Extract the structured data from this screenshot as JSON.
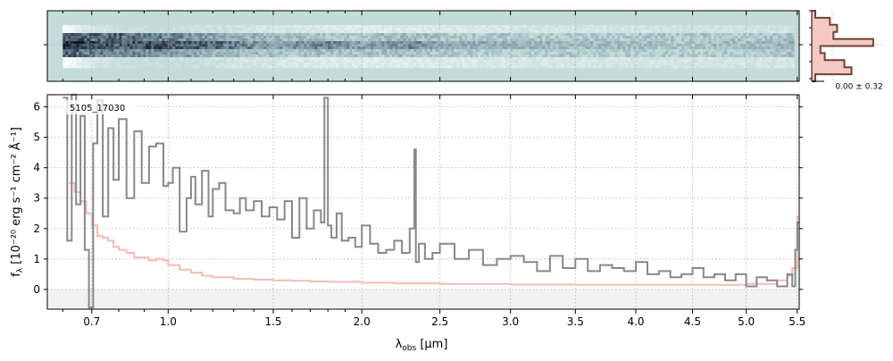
{
  "chart_data": [
    {
      "type": "heatmap",
      "panel": "2d-spectrum",
      "colors": {
        "background": "#c4dcd9",
        "dark": "#101828",
        "mid": "#7f9aa8",
        "light": "#ffffff"
      },
      "profile_columns": [
        "top-bright",
        "upper",
        "trace",
        "lower",
        "bottom-bright"
      ],
      "intensity_profile_x": [
        0.6,
        0.65,
        0.7,
        0.8,
        0.95,
        1.2,
        1.5,
        1.8,
        2.0,
        2.3,
        2.5,
        3.0,
        3.5,
        4.0,
        4.5,
        5.0,
        5.4,
        5.5
      ],
      "intensity_profile": [
        [
          0.95,
          0.5,
          0.3,
          0.1,
          0.0,
          0.15,
          0.3,
          0.4,
          0.45,
          0.4,
          0.4,
          0.3,
          0.25,
          0.25,
          0.2,
          0.2,
          0.2,
          0.3
        ],
        [
          0.8,
          0.8,
          0.7,
          0.7,
          0.6,
          0.4,
          0.25,
          0.2,
          0.2,
          0.25,
          0.15,
          0.15,
          0.15,
          0.15,
          0.15,
          0.15,
          0.2,
          0.3
        ],
        [
          0.95,
          0.95,
          0.8,
          0.75,
          0.8,
          0.7,
          0.4,
          0.6,
          0.4,
          0.55,
          0.4,
          0.3,
          0.25,
          0.2,
          0.2,
          0.25,
          0.3,
          0.5
        ],
        [
          0.7,
          0.7,
          0.6,
          0.6,
          0.5,
          0.3,
          0.2,
          0.2,
          0.2,
          0.2,
          0.15,
          0.1,
          0.1,
          0.1,
          0.1,
          0.1,
          0.2,
          0.3
        ],
        [
          0.95,
          0.6,
          0.3,
          0.1,
          0.0,
          0.15,
          0.3,
          0.4,
          0.45,
          0.4,
          0.4,
          0.3,
          0.3,
          0.25,
          0.25,
          0.25,
          0.3,
          0.4
        ]
      ]
    },
    {
      "type": "line",
      "panel": "profile-histogram",
      "annotation": "0.00 ± 0.32",
      "colors": {
        "line": "#6b4438",
        "fill": "#f6c8c2"
      },
      "series": [
        {
          "y": [
            -0.9,
            -0.7,
            -0.5,
            -0.3,
            -0.1,
            0.1,
            0.3,
            0.5,
            0.7,
            0.9
          ],
          "values": [
            0.05,
            0.55,
            0.45,
            0.18,
            0.12,
            0.85,
            0.3,
            0.35,
            0.25,
            0.05
          ]
        }
      ]
    },
    {
      "type": "line",
      "panel": "1d-spectrum",
      "label": "5105_17030",
      "xlabel": "λ",
      "xlabel_sub": "obs",
      "xlabel_unit": " [μm]",
      "ylabel": "f",
      "ylabel_sub": "λ",
      "ylabel_unit": " [10⁻²⁰ erg s⁻¹ cm⁻² Å⁻¹]",
      "xlim": [
        0.55,
        5.52
      ],
      "ylim": [
        -0.65,
        6.4
      ],
      "x_scale": "sqrt",
      "x_ticks": [
        0.7,
        1.0,
        1.5,
        2.0,
        2.5,
        3.0,
        3.5,
        4.0,
        4.5,
        5.0,
        5.5
      ],
      "x_ticks_minor": [
        0.6,
        0.8,
        0.9,
        1.1,
        1.2,
        1.3,
        1.4,
        1.6,
        1.7,
        1.8,
        1.9
      ],
      "y_ticks": [
        0,
        1,
        2,
        3,
        4,
        5,
        6
      ],
      "grid": true,
      "colors": {
        "data": "#888888",
        "model": "#f7b9b5",
        "zero_band": "#f2f2f2"
      },
      "series": [
        {
          "role": "data",
          "x": [
            0.6,
            0.615,
            0.63,
            0.645,
            0.66,
            0.675,
            0.69,
            0.705,
            0.72,
            0.74,
            0.76,
            0.78,
            0.8,
            0.83,
            0.86,
            0.89,
            0.92,
            0.95,
            0.98,
            1.0,
            1.02,
            1.05,
            1.08,
            1.1,
            1.12,
            1.15,
            1.18,
            1.2,
            1.23,
            1.26,
            1.3,
            1.33,
            1.36,
            1.4,
            1.44,
            1.48,
            1.52,
            1.56,
            1.6,
            1.64,
            1.68,
            1.72,
            1.76,
            1.78,
            1.8,
            1.82,
            1.85,
            1.88,
            1.92,
            1.96,
            2.0,
            2.05,
            2.1,
            2.15,
            2.2,
            2.25,
            2.3,
            2.33,
            2.34,
            2.36,
            2.4,
            2.45,
            2.5,
            2.6,
            2.7,
            2.8,
            2.9,
            3.0,
            3.1,
            3.2,
            3.3,
            3.4,
            3.5,
            3.6,
            3.7,
            3.8,
            3.9,
            4.0,
            4.1,
            4.2,
            4.3,
            4.4,
            4.5,
            4.6,
            4.7,
            4.8,
            4.9,
            5.0,
            5.1,
            5.2,
            5.3,
            5.4,
            5.45,
            5.48,
            5.5
          ],
          "values": [
            6.3,
            1.6,
            6.4,
            2.8,
            5.7,
            1.3,
            -0.6,
            4.8,
            6.2,
            2.4,
            5.3,
            3.6,
            5.6,
            3.0,
            5.2,
            3.5,
            4.7,
            4.8,
            3.4,
            3.5,
            4.0,
            1.9,
            3.0,
            3.7,
            2.8,
            3.9,
            2.4,
            3.3,
            3.5,
            2.6,
            2.5,
            3.0,
            2.6,
            2.9,
            2.4,
            2.7,
            2.3,
            2.9,
            1.7,
            3.0,
            2.0,
            2.6,
            2.2,
            6.3,
            2.1,
            1.7,
            2.5,
            1.6,
            1.7,
            1.4,
            2.1,
            1.5,
            1.2,
            1.3,
            1.6,
            1.2,
            2.0,
            4.6,
            0.9,
            1.5,
            1.0,
            1.2,
            1.5,
            1.0,
            1.3,
            0.8,
            1.0,
            1.1,
            0.9,
            0.6,
            1.1,
            0.7,
            1.0,
            0.6,
            0.8,
            0.7,
            0.6,
            0.9,
            0.5,
            0.6,
            0.4,
            0.5,
            0.7,
            0.4,
            0.5,
            0.3,
            0.5,
            0.1,
            0.4,
            0.3,
            0.1,
            0.5,
            0.1,
            1.3,
            2.2
          ]
        },
        {
          "role": "model",
          "x": [
            0.62,
            0.64,
            0.66,
            0.68,
            0.7,
            0.72,
            0.74,
            0.76,
            0.78,
            0.8,
            0.83,
            0.86,
            0.89,
            0.92,
            0.95,
            0.98,
            1.0,
            1.05,
            1.1,
            1.15,
            1.2,
            1.3,
            1.4,
            1.5,
            1.6,
            1.7,
            1.8,
            2.0,
            2.2,
            2.5,
            3.0,
            3.5,
            4.0,
            4.5,
            5.0,
            5.3,
            5.4,
            5.45,
            5.5
          ],
          "values": [
            3.5,
            3.2,
            2.9,
            2.5,
            2.1,
            1.75,
            1.7,
            1.6,
            1.4,
            1.3,
            1.2,
            1.05,
            1.05,
            0.95,
            1.0,
            0.95,
            0.8,
            0.65,
            0.55,
            0.45,
            0.4,
            0.35,
            0.32,
            0.3,
            0.28,
            0.26,
            0.25,
            0.22,
            0.2,
            0.18,
            0.16,
            0.15,
            0.15,
            0.15,
            0.18,
            0.3,
            0.45,
            0.7,
            2.4
          ]
        }
      ]
    }
  ]
}
